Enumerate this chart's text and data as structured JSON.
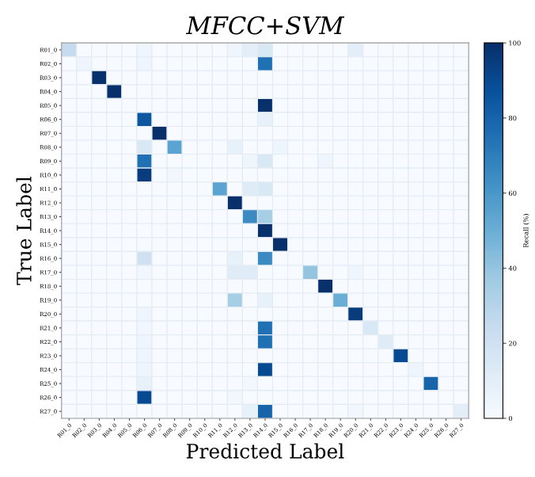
{
  "chart_data": {
    "type": "heatmap",
    "title": "MFCC+SVM",
    "xlabel": "Predicted Label",
    "ylabel": "True Label",
    "clabel": "Recall (%)",
    "categories": [
      "R01_0",
      "R02_0",
      "R03_0",
      "R04_0",
      "R05_0",
      "R06_0",
      "R07_0",
      "R08_0",
      "R09_0",
      "R10_0",
      "R11_0",
      "R12_0",
      "R13_0",
      "R14_0",
      "R15_0",
      "R16_0",
      "R17_0",
      "R18_0",
      "R19_0",
      "R20_0",
      "R21_0",
      "R22_0",
      "R23_0",
      "R24_0",
      "R25_0",
      "R26_0",
      "R27_0"
    ],
    "y_categories": [
      "R01_0",
      "R02_0",
      "R03_0",
      "R04_0",
      "R05_0",
      "R06_0",
      "R07_0",
      "R08_0",
      "R09_0",
      "R10_0",
      "R11_0",
      "R12_0",
      "R13_0",
      "R14_0",
      "R15_0",
      "R16_0",
      "R17_0",
      "R18_0",
      "R19_0",
      "R20_0",
      "R21_0",
      "R22_0",
      "R23_0",
      "R24_0",
      "R25_0",
      "R26_0",
      "R27_0"
    ],
    "cells": [
      [
        25,
        0,
        0,
        0,
        0,
        5,
        0,
        0,
        0,
        0,
        0,
        5,
        10,
        15,
        0,
        0,
        0,
        0,
        0,
        10,
        0,
        0,
        0,
        0,
        0,
        0,
        0
      ],
      [
        0,
        5,
        0,
        0,
        0,
        5,
        0,
        0,
        0,
        0,
        0,
        0,
        0,
        75,
        0,
        0,
        0,
        0,
        0,
        0,
        0,
        0,
        0,
        0,
        0,
        0,
        0
      ],
      [
        0,
        0,
        100,
        0,
        0,
        0,
        0,
        0,
        0,
        0,
        0,
        0,
        0,
        0,
        0,
        0,
        0,
        0,
        0,
        0,
        0,
        0,
        0,
        0,
        0,
        0,
        0
      ],
      [
        0,
        0,
        0,
        100,
        0,
        0,
        0,
        0,
        0,
        0,
        0,
        0,
        0,
        0,
        0,
        0,
        0,
        0,
        0,
        0,
        0,
        0,
        0,
        0,
        0,
        0,
        0
      ],
      [
        0,
        0,
        0,
        0,
        0,
        0,
        0,
        0,
        0,
        0,
        0,
        0,
        0,
        100,
        0,
        0,
        0,
        0,
        0,
        0,
        0,
        0,
        0,
        0,
        0,
        0,
        0
      ],
      [
        0,
        0,
        0,
        0,
        0,
        85,
        0,
        0,
        0,
        0,
        0,
        0,
        0,
        8,
        0,
        0,
        0,
        0,
        0,
        0,
        0,
        0,
        0,
        0,
        0,
        0,
        0
      ],
      [
        0,
        0,
        0,
        0,
        0,
        0,
        100,
        0,
        0,
        0,
        0,
        0,
        0,
        0,
        0,
        0,
        0,
        0,
        0,
        0,
        0,
        0,
        0,
        0,
        0,
        0,
        0
      ],
      [
        0,
        0,
        0,
        0,
        0,
        15,
        0,
        55,
        0,
        0,
        0,
        8,
        0,
        0,
        5,
        0,
        0,
        0,
        0,
        0,
        0,
        0,
        0,
        0,
        0,
        0,
        0
      ],
      [
        0,
        0,
        0,
        0,
        0,
        75,
        0,
        0,
        0,
        0,
        0,
        0,
        5,
        15,
        0,
        0,
        0,
        5,
        0,
        0,
        0,
        0,
        0,
        0,
        0,
        0,
        0
      ],
      [
        0,
        0,
        0,
        0,
        0,
        95,
        0,
        3,
        0,
        0,
        0,
        0,
        0,
        0,
        0,
        0,
        0,
        0,
        0,
        0,
        0,
        0,
        0,
        0,
        0,
        0,
        0
      ],
      [
        0,
        0,
        0,
        0,
        0,
        0,
        0,
        0,
        0,
        0,
        55,
        0,
        12,
        15,
        0,
        0,
        0,
        0,
        0,
        0,
        0,
        0,
        0,
        0,
        0,
        0,
        0
      ],
      [
        0,
        0,
        0,
        0,
        0,
        0,
        0,
        0,
        0,
        0,
        0,
        100,
        0,
        0,
        0,
        0,
        0,
        0,
        0,
        0,
        0,
        0,
        0,
        0,
        0,
        0,
        0
      ],
      [
        0,
        0,
        0,
        0,
        0,
        0,
        0,
        0,
        0,
        0,
        0,
        0,
        65,
        35,
        0,
        0,
        0,
        0,
        0,
        0,
        0,
        0,
        0,
        0,
        0,
        0,
        0
      ],
      [
        0,
        0,
        0,
        0,
        0,
        0,
        0,
        0,
        0,
        0,
        0,
        0,
        0,
        100,
        0,
        0,
        0,
        0,
        0,
        0,
        0,
        0,
        0,
        0,
        0,
        0,
        0
      ],
      [
        0,
        0,
        0,
        0,
        0,
        0,
        0,
        0,
        0,
        0,
        0,
        0,
        0,
        0,
        100,
        0,
        0,
        0,
        0,
        0,
        0,
        0,
        0,
        0,
        0,
        0,
        0
      ],
      [
        0,
        0,
        0,
        0,
        0,
        20,
        0,
        0,
        0,
        0,
        0,
        8,
        0,
        65,
        0,
        0,
        0,
        0,
        0,
        0,
        0,
        0,
        0,
        0,
        0,
        0,
        0
      ],
      [
        0,
        0,
        0,
        0,
        0,
        3,
        0,
        0,
        0,
        0,
        0,
        12,
        12,
        0,
        0,
        0,
        40,
        0,
        0,
        5,
        0,
        0,
        0,
        0,
        0,
        0,
        0
      ],
      [
        0,
        0,
        0,
        0,
        0,
        0,
        0,
        0,
        0,
        0,
        0,
        0,
        0,
        0,
        0,
        0,
        0,
        100,
        0,
        0,
        0,
        0,
        0,
        0,
        0,
        0,
        0
      ],
      [
        0,
        0,
        0,
        0,
        0,
        0,
        0,
        0,
        0,
        0,
        0,
        35,
        0,
        8,
        0,
        0,
        0,
        0,
        50,
        0,
        0,
        0,
        0,
        0,
        0,
        0,
        0
      ],
      [
        0,
        0,
        0,
        0,
        0,
        5,
        0,
        0,
        0,
        0,
        0,
        0,
        0,
        0,
        0,
        0,
        0,
        0,
        0,
        95,
        0,
        0,
        0,
        0,
        0,
        0,
        0
      ],
      [
        0,
        0,
        0,
        0,
        0,
        3,
        0,
        0,
        0,
        0,
        0,
        0,
        0,
        75,
        0,
        0,
        0,
        0,
        0,
        0,
        15,
        0,
        0,
        0,
        0,
        0,
        0
      ],
      [
        0,
        0,
        0,
        0,
        0,
        5,
        0,
        0,
        0,
        0,
        0,
        0,
        0,
        75,
        0,
        0,
        0,
        0,
        0,
        0,
        0,
        12,
        0,
        0,
        0,
        0,
        0
      ],
      [
        0,
        0,
        0,
        0,
        0,
        5,
        0,
        0,
        0,
        0,
        0,
        0,
        0,
        0,
        0,
        0,
        0,
        0,
        0,
        0,
        0,
        0,
        90,
        0,
        0,
        0,
        0
      ],
      [
        0,
        0,
        0,
        0,
        0,
        5,
        0,
        0,
        0,
        0,
        0,
        0,
        0,
        90,
        0,
        0,
        0,
        0,
        0,
        0,
        0,
        0,
        0,
        5,
        0,
        0,
        0
      ],
      [
        0,
        0,
        0,
        0,
        0,
        8,
        0,
        0,
        0,
        0,
        0,
        0,
        3,
        0,
        0,
        0,
        0,
        0,
        0,
        0,
        0,
        0,
        0,
        0,
        80,
        0,
        0
      ],
      [
        0,
        0,
        0,
        0,
        0,
        90,
        0,
        0,
        0,
        0,
        0,
        3,
        0,
        0,
        0,
        0,
        0,
        0,
        0,
        0,
        0,
        0,
        0,
        0,
        0,
        0,
        0
      ],
      [
        0,
        0,
        0,
        0,
        0,
        0,
        0,
        0,
        0,
        0,
        0,
        0,
        8,
        80,
        0,
        0,
        0,
        0,
        0,
        3,
        0,
        0,
        0,
        0,
        0,
        0,
        10
      ]
    ],
    "clim": [
      0,
      100
    ],
    "cticks": [
      0,
      20,
      40,
      60,
      80,
      100
    ]
  }
}
